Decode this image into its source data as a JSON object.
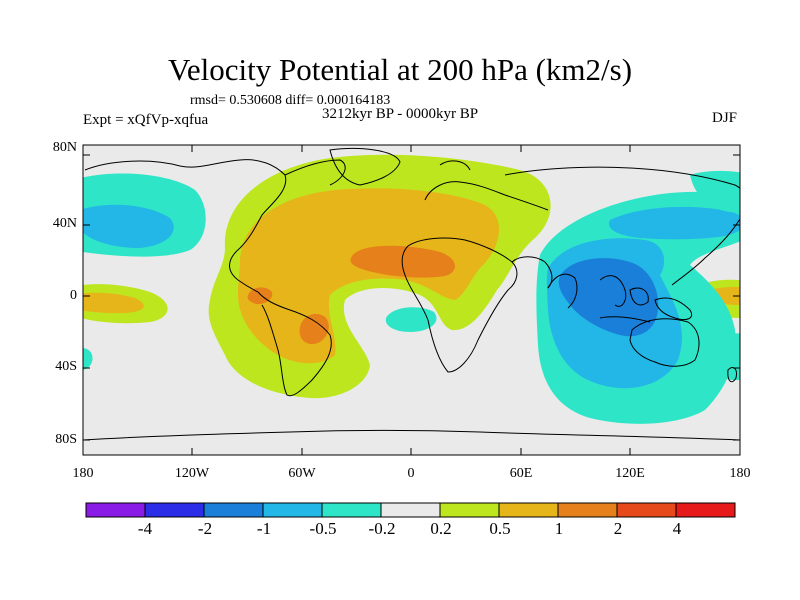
{
  "title": "Velocity Potential at 200 hPa (km2/s)",
  "stats": "rmsd= 0.530608 diff= 0.000164183",
  "experiment": "Expt = xQfVp-xqfua",
  "period": "3212kyr BP - 0000kyr BP",
  "season": "DJF",
  "lat_labels": [
    "80N",
    "40N",
    "0",
    "40S",
    "80S"
  ],
  "lon_labels": [
    "180",
    "120W",
    "60W",
    "0",
    "60E",
    "120E",
    "180"
  ],
  "colorbar": {
    "labels": [
      "-4",
      "-2",
      "-1",
      "-0.5",
      "-0.2",
      "0.2",
      "0.5",
      "1",
      "2",
      "4"
    ],
    "colors": [
      "#8a1ae6",
      "#2b2ee6",
      "#1a7fd9",
      "#22b7e6",
      "#2ee6c7",
      "#eaeaea",
      "#bde61f",
      "#e6b51a",
      "#e6801a",
      "#e64a1a",
      "#e61a1a"
    ]
  },
  "fill_colors": {
    "neutral": "#eaeaea",
    "pos_02": "#bde61f",
    "pos_05": "#e6b51a",
    "pos_1": "#e6801a",
    "neg_02": "#2ee6c7",
    "neg_05": "#22b7e6",
    "neg_1": "#1a7fd9"
  }
}
